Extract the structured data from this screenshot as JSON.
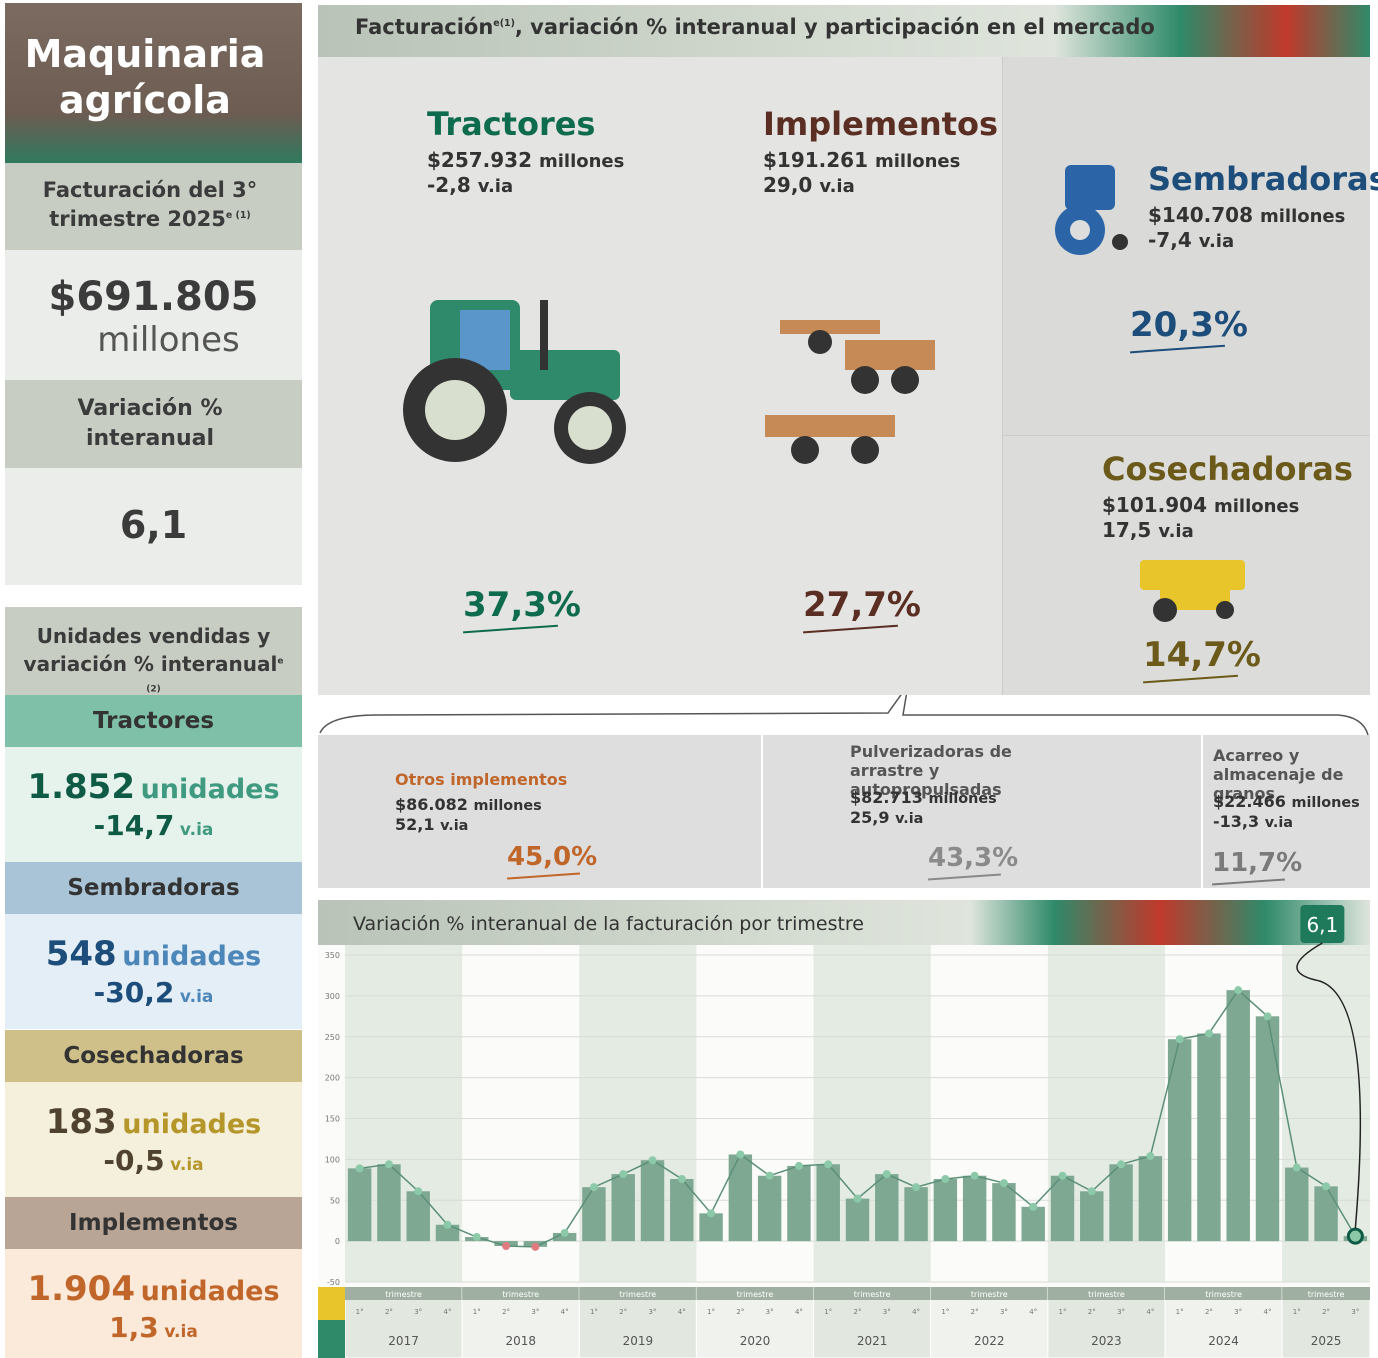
{
  "sidebar": {
    "title": "Maquinaria agrícola",
    "revenue": {
      "label": "Facturación del 3° trimestre 2025",
      "label_sup": "e (1)",
      "amount": "$691.805",
      "unit": "millones"
    },
    "variation": {
      "label": "Variación % interanual",
      "value": "6,1"
    },
    "units": {
      "title": "Unidades vendidas y variación % interanual",
      "title_sup": "e (2)",
      "items": [
        {
          "name": "Tractores",
          "units": "1.852",
          "unit_label": "unidades",
          "variation": "-14,7",
          "variation_unit": "v.ia"
        },
        {
          "name": "Sembradoras",
          "units": "548",
          "unit_label": "unidades",
          "variation": "-30,2",
          "variation_unit": "v.ia"
        },
        {
          "name": "Cosechadoras",
          "units": "183",
          "unit_label": "unidades",
          "variation": "-0,5",
          "variation_unit": "v.ia"
        },
        {
          "name": "Implementos",
          "units": "1.904",
          "unit_label": "unidades",
          "variation": "1,3",
          "variation_unit": "v.ia"
        }
      ]
    }
  },
  "revenue": {
    "title": "Facturación",
    "title_sup": "(1)",
    "title_e": "e",
    "title_rest": ", variación % interanual y participación en el mercado",
    "segments": [
      {
        "name": "Tractores",
        "amount": "$257.932",
        "unit": "millones",
        "variation": "-2,8",
        "variation_unit": "v.ia",
        "share": "37,3%"
      },
      {
        "name": "Implementos",
        "amount": "$191.261",
        "unit": "millones",
        "variation": "29,0",
        "variation_unit": "v.ia",
        "share": "27,7%"
      },
      {
        "name": "Sembradoras",
        "amount": "$140.708",
        "unit": "millones",
        "variation": "-7,4",
        "variation_unit": "v.ia",
        "share": "20,3%"
      },
      {
        "name": "Cosechadoras",
        "amount": "$101.904",
        "unit": "millones",
        "variation": "17,5",
        "variation_unit": "v.ia",
        "share": "14,7%"
      }
    ],
    "implement_breakdown": [
      {
        "name": "Otros implementos",
        "amount": "$86.082",
        "unit": "millones",
        "variation": "52,1",
        "variation_unit": "v.ia",
        "share": "45,0%"
      },
      {
        "name": "Pulverizadoras de arrastre y autopropulsadas",
        "amount": "$82.713",
        "unit": "millones",
        "variation": "25,9",
        "variation_unit": "v.ia",
        "share": "43,3%"
      },
      {
        "name": "Acarreo y almacenaje de granos",
        "amount": "$22.466",
        "unit": "millones",
        "variation": "-13,3",
        "variation_unit": "v.ia",
        "share": "11,7%"
      }
    ]
  },
  "chart_data": {
    "type": "bar-line",
    "title": "Variación % interanual de la facturación por trimestre",
    "categories": [
      "1°",
      "2°",
      "3°",
      "4°",
      "1°",
      "2°",
      "3°",
      "4°",
      "1°",
      "2°",
      "3°",
      "4°",
      "1°",
      "2°",
      "3°",
      "4°",
      "1°",
      "2°",
      "3°",
      "4°",
      "1°",
      "2°",
      "3°",
      "4°",
      "1°",
      "2°",
      "3°",
      "4°",
      "1°",
      "2°",
      "3°",
      "4°",
      "1°",
      "2°",
      "3°"
    ],
    "group_label": "trimestre",
    "groups": [
      "2017",
      "2018",
      "2019",
      "2020",
      "2021",
      "2022",
      "2023",
      "2024",
      "2025"
    ],
    "values": [
      89,
      94,
      61,
      20,
      5,
      -6,
      -7,
      10,
      66,
      82,
      99,
      76,
      34,
      106,
      80,
      92,
      94,
      52,
      82,
      66,
      76,
      80,
      71,
      42,
      80,
      61,
      94,
      104,
      247,
      254,
      307,
      275,
      90,
      67,
      6.1
    ],
    "value_labels": [
      null,
      null,
      null,
      null,
      null,
      null,
      null,
      null,
      null,
      null,
      null,
      null,
      null,
      null,
      null,
      null,
      null,
      null,
      null,
      null,
      null,
      null,
      null,
      null,
      null,
      null,
      null,
      null,
      null,
      null,
      null,
      null,
      null,
      null,
      "6,1"
    ],
    "color": "#7fa893",
    "line_color": "#5b8f78",
    "negative_color": "#e07b80",
    "ylim": [
      -50,
      350
    ],
    "yticks": [
      -50,
      0,
      50,
      100,
      150,
      200,
      250,
      300,
      350
    ],
    "grid": true
  }
}
